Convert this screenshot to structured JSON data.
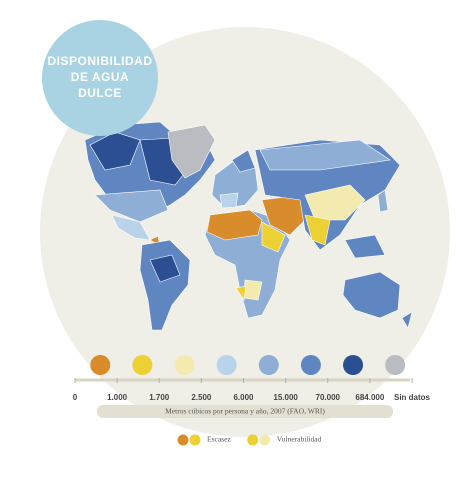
{
  "title_lines": [
    "DISPONIBILIDAD",
    "DE AGUA",
    "DULCE"
  ],
  "scale": {
    "colors": [
      "#d98c2b",
      "#ecd034",
      "#f3eab0",
      "#b9d3ea",
      "#8faed6",
      "#5f86c1",
      "#2c4f94",
      "#b9bcc0"
    ],
    "labels": [
      "0",
      "1.000",
      "1.700",
      "2.500",
      "6.000",
      "15.000",
      "70.000",
      "684.000",
      "Sin datos"
    ],
    "caption": "Metros cúbicos por persona y año, 2007 (FAO, WRI)"
  },
  "key": [
    {
      "label": "Escasez",
      "colors": [
        "#d98c2b",
        "#ecd034"
      ]
    },
    {
      "label": "Vulnerabilidad",
      "colors": [
        "#ecd034",
        "#f3eab0"
      ]
    }
  ]
}
